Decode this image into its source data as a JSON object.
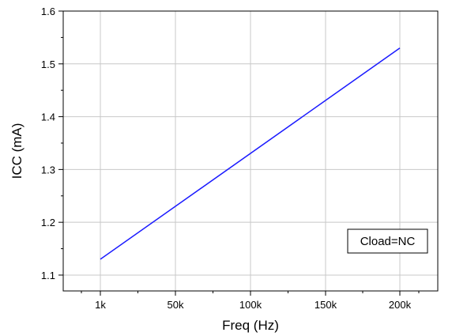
{
  "chart_data": {
    "type": "line",
    "title": "",
    "xlabel": "Freq (Hz)",
    "ylabel": "ICC (mA)",
    "x_ticks": [
      "1k",
      "50k",
      "100k",
      "150k",
      "200k"
    ],
    "y_ticks": [
      "1.1",
      "1.2",
      "1.3",
      "1.4",
      "1.5",
      "1.6"
    ],
    "xlim": [
      -50000,
      250000
    ],
    "ylim": [
      1.07,
      1.6
    ],
    "grid": true,
    "series": [
      {
        "color": "#1a1aff",
        "x": [
          1000,
          200000
        ],
        "y": [
          1.13,
          1.53
        ]
      }
    ],
    "annotation": "Cload=NC"
  }
}
